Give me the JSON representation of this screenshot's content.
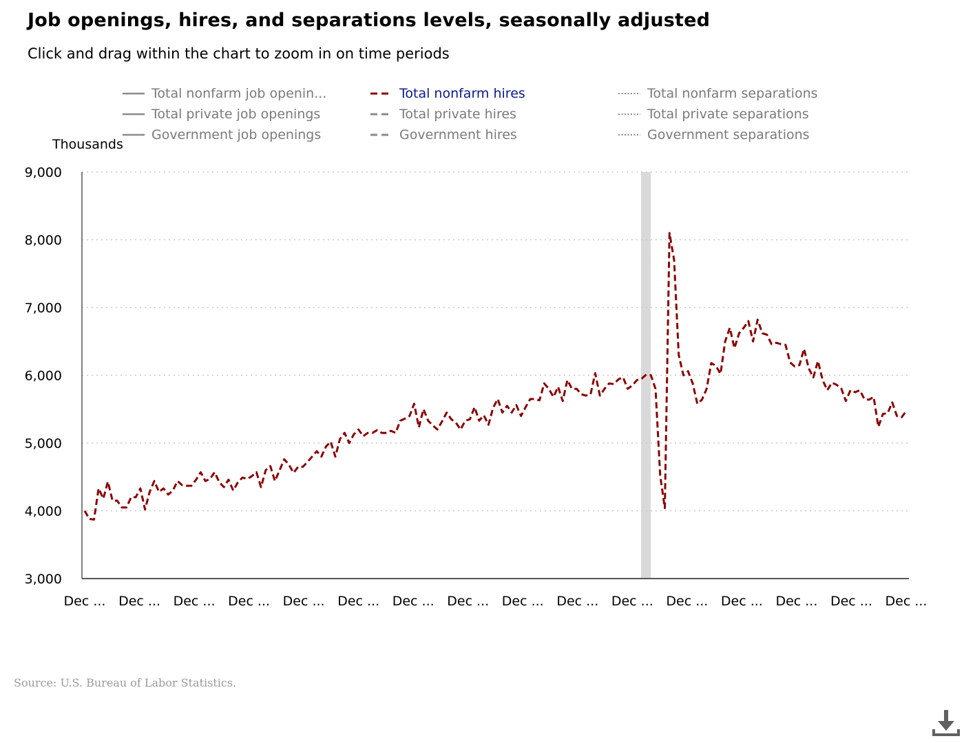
{
  "title": "Job openings, hires, and separations levels, seasonally adjusted",
  "subtitle": "Click and drag within the chart to zoom in on time periods",
  "source": "Source: U.S. Bureau of Labor Statistics.",
  "download_icon": "download-icon",
  "colors": {
    "active_series": "#8b0000",
    "inactive_series": "#8a8a8a",
    "active_legend_text": "#0b1a8c",
    "grid": "#c8c8c8",
    "axis": "#555555",
    "recession_band": "#d9d9d9"
  },
  "legend": [
    {
      "label": "Total nonfarm job openin...",
      "style": "solid",
      "active": false
    },
    {
      "label": "Total nonfarm hires",
      "style": "dashed",
      "active": true
    },
    {
      "label": "Total nonfarm separations",
      "style": "dotted",
      "active": false
    },
    {
      "label": "Total private job openings",
      "style": "solid",
      "active": false
    },
    {
      "label": "Total private hires",
      "style": "dashed",
      "active": false
    },
    {
      "label": "Total private separations",
      "style": "dotted",
      "active": false
    },
    {
      "label": "Government job openings",
      "style": "solid",
      "active": false
    },
    {
      "label": "Government hires",
      "style": "dashed",
      "active": false
    },
    {
      "label": "Government separations",
      "style": "dotted",
      "active": false
    }
  ],
  "chart_data": {
    "type": "line",
    "ylabel": "Thousands",
    "ylim": [
      3000,
      9000
    ],
    "yticks": [
      3000,
      4000,
      5000,
      6000,
      7000,
      8000,
      9000
    ],
    "ytick_labels": [
      "3,000",
      "4,000",
      "5,000",
      "6,000",
      "7,000",
      "8,000",
      "9,000"
    ],
    "xtick_labels": [
      "Dec ...",
      "Dec ...",
      "Dec ...",
      "Dec ...",
      "Dec ...",
      "Dec ...",
      "Dec ...",
      "Dec ...",
      "Dec ...",
      "Dec ...",
      "Dec ...",
      "Dec ...",
      "Dec ...",
      "Dec ...",
      "Dec ...",
      "Dec ..."
    ],
    "grid": true,
    "legend_position": "top",
    "recession_shading": {
      "start_month_index": 171,
      "end_month_index": 173
    },
    "series": [
      {
        "name": "Total nonfarm hires",
        "visible": true,
        "values": [
          4000,
          3880,
          3870,
          4330,
          4180,
          4430,
          4150,
          4150,
          4050,
          4050,
          4200,
          4200,
          4330,
          4020,
          4280,
          4440,
          4280,
          4330,
          4240,
          4300,
          4440,
          4380,
          4370,
          4370,
          4460,
          4570,
          4440,
          4470,
          4570,
          4420,
          4350,
          4460,
          4300,
          4420,
          4490,
          4470,
          4510,
          4570,
          4350,
          4600,
          4660,
          4440,
          4600,
          4760,
          4680,
          4560,
          4650,
          4650,
          4720,
          4800,
          4880,
          4800,
          4950,
          5020,
          4800,
          5060,
          5150,
          5000,
          5130,
          5200,
          5100,
          5150,
          5150,
          5190,
          5150,
          5150,
          5180,
          5150,
          5330,
          5360,
          5400,
          5580,
          5230,
          5500,
          5330,
          5260,
          5200,
          5320,
          5450,
          5350,
          5300,
          5200,
          5330,
          5350,
          5530,
          5330,
          5410,
          5270,
          5520,
          5650,
          5450,
          5550,
          5450,
          5560,
          5400,
          5530,
          5650,
          5650,
          5630,
          5880,
          5800,
          5680,
          5830,
          5620,
          5930,
          5800,
          5800,
          5720,
          5700,
          5720,
          6030,
          5700,
          5800,
          5880,
          5870,
          5940,
          5970,
          5800,
          5850,
          5930,
          5950,
          6010,
          6000,
          5800,
          4520,
          4040,
          8100,
          7700,
          6300,
          6000,
          6060,
          5880,
          5580,
          5640,
          5800,
          6180,
          6140,
          6020,
          6500,
          6700,
          6400,
          6620,
          6700,
          6800,
          6500,
          6820,
          6620,
          6600,
          6460,
          6480,
          6460,
          6450,
          6190,
          6130,
          6150,
          6390,
          6100,
          5970,
          6210,
          5930,
          5780,
          5890,
          5860,
          5810,
          5620,
          5780,
          5750,
          5780,
          5650,
          5640,
          5680,
          5240,
          5430,
          5440,
          5600,
          5400,
          5380,
          5470
        ]
      }
    ]
  }
}
